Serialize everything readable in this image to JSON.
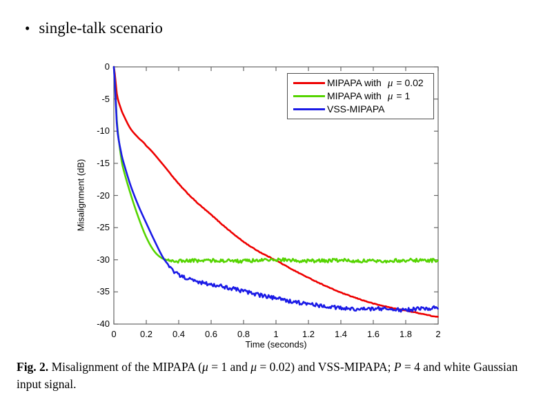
{
  "bullet": {
    "marker": "•",
    "text": "single-talk scenario"
  },
  "figure": {
    "caption": {
      "label": "Fig. 2.",
      "part1": " Misalignment of the MIPAPA (",
      "mu1": "μ",
      "part2": " = 1 and ",
      "mu2": "μ",
      "part3": " = 0.02) and VSS-MIPAPA; ",
      "p_symbol": "P",
      "part4": " = 4 and white Gaussian input signal."
    }
  },
  "chart_data": {
    "type": "line",
    "title": "",
    "xlabel": "Time (seconds)",
    "ylabel": "Misalignment (dB)",
    "xlim": [
      0,
      2
    ],
    "ylim": [
      -40,
      0
    ],
    "grid": false,
    "legend_position": "top-right",
    "frame_color": "#666666",
    "text_color": "#000000",
    "x_ticks": [
      0,
      0.2,
      0.4,
      0.6,
      0.8,
      1,
      1.2,
      1.4,
      1.6,
      1.8,
      2
    ],
    "x_tick_labels": [
      "0",
      "0.2",
      "0.4",
      "0.6",
      "0.8",
      "1",
      "1.2",
      "1.4",
      "1.6",
      "1.8",
      "2"
    ],
    "y_ticks": [
      0,
      -5,
      -10,
      -15,
      -20,
      -25,
      -30,
      -35,
      -40
    ],
    "y_tick_labels": [
      "0",
      "-5",
      "-10",
      "-15",
      "-20",
      "-25",
      "-30",
      "-35",
      "-40"
    ],
    "series": [
      {
        "name": "MIPAPA with mu = 0.02",
        "legend": {
          "prefix": "MIPAPA with",
          "mu": "μ",
          "value": "= 0.02"
        },
        "color": "#ee0000",
        "noise_db": 0.05,
        "noise_from": 0.3,
        "points": {
          "t": [
            0,
            0.02,
            0.05,
            0.1,
            0.15,
            0.2,
            0.3,
            0.4,
            0.5,
            0.6,
            0.7,
            0.8,
            0.9,
            1.0,
            1.1,
            1.2,
            1.3,
            1.4,
            1.5,
            1.6,
            1.7,
            1.8,
            1.9,
            2.0
          ],
          "db": [
            0,
            -4.5,
            -7.0,
            -9.5,
            -11.0,
            -12.3,
            -15.1,
            -18.2,
            -20.8,
            -23.0,
            -25.2,
            -27.2,
            -28.8,
            -30.1,
            -31.5,
            -32.8,
            -34.0,
            -35.1,
            -36.0,
            -36.8,
            -37.4,
            -37.9,
            -38.4,
            -38.9
          ]
        }
      },
      {
        "name": "MIPAPA with mu = 1",
        "legend": {
          "prefix": "MIPAPA with",
          "mu": "μ",
          "value": "= 1"
        },
        "color": "#55d400",
        "noise_db": 0.28,
        "noise_from": 0.3,
        "points": {
          "t": [
            0,
            0.02,
            0.05,
            0.1,
            0.15,
            0.2,
            0.25,
            0.3,
            0.35,
            0.4,
            0.6,
            0.8,
            1.0,
            1.2,
            1.4,
            1.6,
            1.8,
            2.0
          ],
          "db": [
            0,
            -9.0,
            -15.0,
            -19.5,
            -23.3,
            -26.5,
            -28.7,
            -29.8,
            -30.1,
            -30.2,
            -30.1,
            -30.2,
            -30.0,
            -30.2,
            -30.1,
            -30.2,
            -30.1,
            -30.1
          ]
        }
      },
      {
        "name": "VSS-MIPAPA",
        "legend": {
          "prefix": "VSS-MIPAPA",
          "mu": "",
          "value": ""
        },
        "color": "#1a1ae6",
        "noise_db": 0.3,
        "noise_from": 0.3,
        "points": {
          "t": [
            0,
            0.02,
            0.05,
            0.1,
            0.15,
            0.2,
            0.25,
            0.3,
            0.35,
            0.4,
            0.5,
            0.6,
            0.7,
            0.8,
            0.9,
            1.0,
            1.1,
            1.2,
            1.3,
            1.4,
            1.5,
            1.6,
            1.7,
            1.8,
            1.9,
            2.0
          ],
          "db": [
            0,
            -9.5,
            -14.0,
            -18.2,
            -21.5,
            -24.3,
            -27.0,
            -29.5,
            -31.3,
            -32.4,
            -33.3,
            -33.8,
            -34.3,
            -34.9,
            -35.5,
            -36.0,
            -36.5,
            -36.9,
            -37.2,
            -37.5,
            -37.7,
            -37.6,
            -37.7,
            -37.8,
            -37.6,
            -37.5
          ]
        }
      }
    ]
  }
}
